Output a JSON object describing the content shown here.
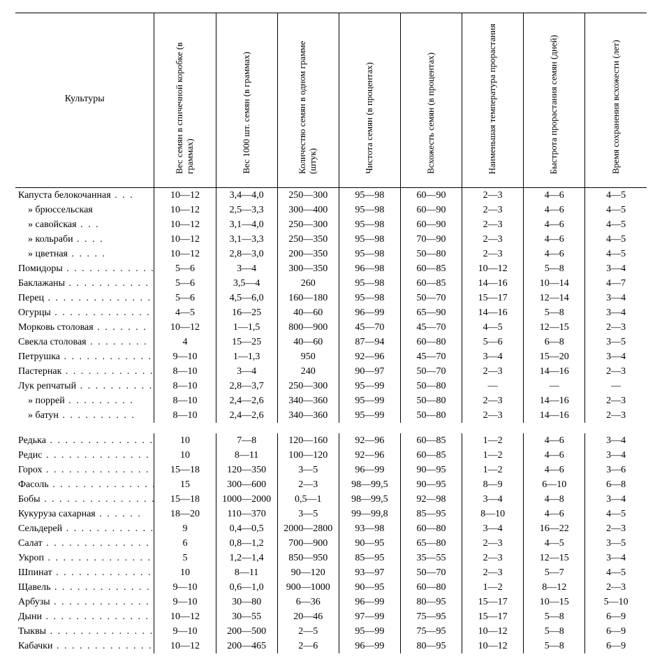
{
  "header": {
    "culture": "Культуры",
    "cols": [
      "Вес семян в спичечной коробке (в граммах)",
      "Вес 1000 шт. семян (в граммах)",
      "Количество семян в одном грамме (штук)",
      "Чистота семян (в процентах)",
      "Всхожесть семян (в процентах)",
      "Наименьшая температура прорастания",
      "Быстрота прорастания семян (дней)",
      "Время сохранения всхожести (лет)"
    ]
  },
  "style": {
    "bg": "#ffffff",
    "fg": "#000000",
    "rule_color": "#000000",
    "font_family": "Times New Roman",
    "base_fontsize": 14,
    "header_fontsize": 13
  },
  "groups": [
    {
      "rows": [
        {
          "name": "Капуста белокочанная",
          "indent": 0,
          "v": [
            "10—12",
            "3,4—4,0",
            "250—300",
            "95—98",
            "60—90",
            "2—3",
            "4—6",
            "4—5"
          ]
        },
        {
          "name": "»      брюссельская",
          "indent": 1,
          "v": [
            "10—12",
            "2,5—3,3",
            "300—400",
            "95—98",
            "60—90",
            "2—3",
            "4—6",
            "4—5"
          ]
        },
        {
          "name": "»      савойская",
          "indent": 1,
          "v": [
            "10—12",
            "3,1—4,0",
            "250—300",
            "95—98",
            "60—90",
            "2—3",
            "4—6",
            "4—5"
          ]
        },
        {
          "name": "»      кольраби",
          "indent": 1,
          "v": [
            "10—12",
            "3,1—3,3",
            "250—350",
            "95—98",
            "70—90",
            "2—3",
            "4—6",
            "4—5"
          ]
        },
        {
          "name": "»      цветная",
          "indent": 1,
          "v": [
            "10—12",
            "2,8—3,0",
            "200—350",
            "95—98",
            "50—80",
            "2—3",
            "4—6",
            "4—5"
          ]
        },
        {
          "name": "Помидоры",
          "indent": 0,
          "v": [
            "5—6",
            "3—4",
            "300—350",
            "96—98",
            "60—85",
            "10—12",
            "5—8",
            "3—4"
          ]
        },
        {
          "name": "Баклажаны",
          "indent": 0,
          "v": [
            "5—6",
            "3,5—4",
            "260",
            "95—98",
            "60—85",
            "14—16",
            "10—14",
            "4—7"
          ]
        },
        {
          "name": "Перец",
          "indent": 0,
          "v": [
            "5—6",
            "4,5—6,0",
            "160—180",
            "95—98",
            "50—70",
            "15—17",
            "12—14",
            "3—4"
          ]
        },
        {
          "name": "Огурцы",
          "indent": 0,
          "v": [
            "4—5",
            "16—25",
            "40—60",
            "96—99",
            "65—90",
            "14—16",
            "5—8",
            "3—4"
          ]
        },
        {
          "name": "Морковь столовая",
          "indent": 0,
          "v": [
            "10—12",
            "1—1,5",
            "800—900",
            "45—70",
            "45—70",
            "4—5",
            "12—15",
            "2—3"
          ]
        },
        {
          "name": "Свекла столовая",
          "indent": 0,
          "v": [
            "4",
            "15—25",
            "40—60",
            "87—94",
            "60—80",
            "5—6",
            "6—8",
            "3—5"
          ]
        },
        {
          "name": "Петрушка",
          "indent": 0,
          "v": [
            "9—10",
            "1—1,3",
            "950",
            "92—96",
            "45—70",
            "3—4",
            "15—20",
            "3—4"
          ]
        },
        {
          "name": "Пастернак",
          "indent": 0,
          "v": [
            "8—10",
            "3—4",
            "240",
            "90—97",
            "50—70",
            "2—3",
            "14—16",
            "2—3"
          ]
        },
        {
          "name": "Лук репчатый",
          "indent": 0,
          "v": [
            "8—10",
            "2,8—3,7",
            "250—300",
            "95—99",
            "50—80",
            "—",
            "—",
            "—"
          ]
        },
        {
          "name": "»   поррей",
          "indent": 1,
          "v": [
            "8—10",
            "2,4—2,6",
            "340—360",
            "95—99",
            "50—80",
            "2—3",
            "14—16",
            "2—3"
          ]
        },
        {
          "name": "»   батун",
          "indent": 1,
          "v": [
            "8—10",
            "2,4—2,6",
            "340—360",
            "95—99",
            "50—80",
            "2—3",
            "14—16",
            "2—3"
          ]
        }
      ]
    },
    {
      "rows": [
        {
          "name": "Редька",
          "indent": 0,
          "v": [
            "10",
            "7—8",
            "120—160",
            "92—96",
            "60—85",
            "1—2",
            "4—6",
            "3—4"
          ]
        },
        {
          "name": "Редис",
          "indent": 0,
          "v": [
            "10",
            "8—11",
            "100—120",
            "92—96",
            "60—85",
            "1—2",
            "4—6",
            "3—4"
          ]
        },
        {
          "name": "Горох",
          "indent": 0,
          "v": [
            "15—18",
            "120—350",
            "3—5",
            "96—99",
            "90—95",
            "1—2",
            "4—6",
            "3—6"
          ]
        },
        {
          "name": "Фасоль",
          "indent": 0,
          "v": [
            "15",
            "300—600",
            "2—3",
            "98—99,5",
            "90—95",
            "8—9",
            "6—10",
            "6—8"
          ]
        },
        {
          "name": "Бобы",
          "indent": 0,
          "v": [
            "15—18",
            "1000—2000",
            "0,5—1",
            "98—99,5",
            "92—98",
            "3—4",
            "4—8",
            "3—4"
          ]
        },
        {
          "name": "Кукуруза сахарная",
          "indent": 0,
          "v": [
            "18—20",
            "110—370",
            "3—5",
            "99—99,8",
            "85—95",
            "8—10",
            "4—6",
            "4—5"
          ]
        },
        {
          "name": "Сельдерей",
          "indent": 0,
          "v": [
            "9",
            "0,4—0,5",
            "2000—2800",
            "93—98",
            "60—80",
            "3—4",
            "16—22",
            "2—3"
          ]
        },
        {
          "name": "Салат",
          "indent": 0,
          "v": [
            "6",
            "0,8—1,2",
            "700—900",
            "90—95",
            "65—80",
            "2—3",
            "4—5",
            "3—5"
          ]
        },
        {
          "name": "Укроп",
          "indent": 0,
          "v": [
            "5",
            "1,2—1,4",
            "850—950",
            "85—95",
            "35—55",
            "2—3",
            "12—15",
            "3—4"
          ]
        },
        {
          "name": "Шпинат",
          "indent": 0,
          "v": [
            "10",
            "8—11",
            "90—120",
            "93—97",
            "50—70",
            "2—3",
            "5—7",
            "4—5"
          ]
        },
        {
          "name": "Щавель",
          "indent": 0,
          "v": [
            "9—10",
            "0,6—1,0",
            "900—1000",
            "90—95",
            "60—80",
            "1—2",
            "8—12",
            "2—3"
          ]
        },
        {
          "name": "Арбузы",
          "indent": 0,
          "v": [
            "9—10",
            "30—80",
            "6—36",
            "96—99",
            "80—95",
            "15—17",
            "10—15",
            "5—10"
          ]
        },
        {
          "name": "Дыни",
          "indent": 0,
          "v": [
            "10—12",
            "30—55",
            "20—46",
            "97—99",
            "75—95",
            "15—17",
            "5—8",
            "6—9"
          ]
        },
        {
          "name": "Тыквы",
          "indent": 0,
          "v": [
            "9—10",
            "200—500",
            "2—5",
            "95—99",
            "75—95",
            "10—12",
            "5—8",
            "6—9"
          ]
        },
        {
          "name": "Кабачки",
          "indent": 0,
          "v": [
            "10—12",
            "200—465",
            "2—6",
            "96—99",
            "80—95",
            "10—12",
            "5—8",
            "6—9"
          ]
        }
      ]
    }
  ]
}
